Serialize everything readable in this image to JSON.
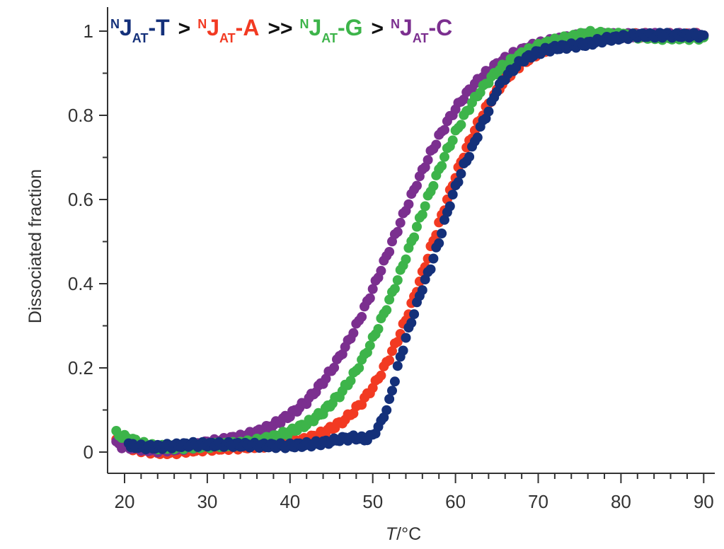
{
  "chart_data": {
    "type": "scatter",
    "title": "",
    "xlabel": {
      "italic": "T",
      "rest": "/°C"
    },
    "ylabel": "Dissociated fraction",
    "xlim": [
      18,
      91.5
    ],
    "ylim": [
      -0.05,
      1.057
    ],
    "xticks": [
      20,
      30,
      40,
      50,
      60,
      70,
      80,
      90
    ],
    "yticks": [
      0,
      0.2,
      0.4,
      0.6,
      0.8,
      1
    ],
    "ytick_labels": [
      "0",
      "0.2",
      "0.4",
      "0.6",
      "0.8",
      "1"
    ],
    "grid": false,
    "legend_placement": "top-left",
    "legend": {
      "items": [
        {
          "sup": "N",
          "main": "J",
          "sub": "AT",
          "suffix": "-T",
          "color": "#14307a"
        },
        {
          "sup": "N",
          "main": "J",
          "sub": "AT",
          "suffix": "-A",
          "color": "#f23a22"
        },
        {
          "sup": "N",
          "main": "J",
          "sub": "AT",
          "suffix": "-G",
          "color": "#3db44a"
        },
        {
          "sup": "N",
          "main": "J",
          "sub": "AT",
          "suffix": "-C",
          "color": "#7b2f8f"
        }
      ],
      "separators": [
        ">",
        ">>",
        ">"
      ]
    },
    "series": [
      {
        "name": "NJAT-A",
        "color": "#f23a22",
        "x": [
          19,
          20,
          21,
          22,
          24,
          26,
          28,
          30,
          32,
          34,
          36,
          38,
          40,
          42,
          44,
          46,
          47,
          48,
          49,
          50,
          51,
          52,
          53,
          54,
          55,
          56,
          57,
          58,
          59,
          60,
          61,
          62,
          63,
          64,
          65,
          66,
          67,
          68,
          70,
          72,
          74,
          76,
          80,
          85,
          90
        ],
        "y": [
          0.03,
          0.02,
          0.01,
          0.005,
          0.0,
          0.0,
          0.005,
          0.008,
          0.01,
          0.012,
          0.015,
          0.018,
          0.021,
          0.03,
          0.045,
          0.068,
          0.084,
          0.103,
          0.126,
          0.153,
          0.186,
          0.224,
          0.267,
          0.315,
          0.368,
          0.424,
          0.483,
          0.541,
          0.599,
          0.654,
          0.705,
          0.751,
          0.792,
          0.828,
          0.858,
          0.884,
          0.906,
          0.923,
          0.949,
          0.966,
          0.977,
          0.984,
          0.99,
          0.99,
          0.99
        ]
      },
      {
        "name": "NJAT-C",
        "color": "#7b2f8f",
        "x": [
          19,
          20,
          21,
          22,
          24,
          26,
          28,
          30,
          32,
          34,
          36,
          38,
          40,
          42,
          44,
          45,
          46,
          47,
          48,
          49,
          50,
          51,
          52,
          53,
          54,
          55,
          56,
          57,
          58,
          59,
          60,
          61,
          62,
          63,
          64,
          65,
          66,
          67,
          68,
          69,
          70,
          72,
          74,
          76,
          80,
          85,
          90
        ],
        "y": [
          0.02,
          0.012,
          0.01,
          0.008,
          0.005,
          0.008,
          0.012,
          0.022,
          0.028,
          0.036,
          0.047,
          0.064,
          0.088,
          0.12,
          0.167,
          0.195,
          0.227,
          0.261,
          0.299,
          0.341,
          0.386,
          0.433,
          0.481,
          0.529,
          0.577,
          0.624,
          0.668,
          0.71,
          0.748,
          0.783,
          0.815,
          0.842,
          0.867,
          0.888,
          0.906,
          0.922,
          0.934,
          0.945,
          0.954,
          0.962,
          0.969,
          0.978,
          0.985,
          0.99,
          0.99,
          0.99,
          0.99
        ]
      },
      {
        "name": "NJAT-G",
        "color": "#3db44a",
        "x": [
          19,
          20,
          21,
          22,
          23,
          24,
          26,
          28,
          30,
          34,
          36,
          38,
          40,
          42,
          44,
          46,
          47,
          48,
          49,
          50,
          51,
          52,
          53,
          54,
          55,
          56,
          57,
          58,
          59,
          60,
          61,
          62,
          63,
          64,
          65,
          66,
          67,
          68,
          70,
          72,
          74,
          76,
          80,
          85,
          90
        ],
        "y": [
          0.045,
          0.035,
          0.028,
          0.02,
          0.015,
          0.012,
          0.012,
          0.013,
          0.015,
          0.02,
          0.026,
          0.035,
          0.048,
          0.067,
          0.095,
          0.136,
          0.163,
          0.194,
          0.229,
          0.268,
          0.312,
          0.359,
          0.409,
          0.462,
          0.516,
          0.569,
          0.621,
          0.67,
          0.717,
          0.758,
          0.796,
          0.829,
          0.857,
          0.882,
          0.903,
          0.92,
          0.934,
          0.946,
          0.964,
          0.977,
          0.985,
          0.995,
          0.99,
          0.985,
          0.985
        ]
      },
      {
        "name": "NJAT-T",
        "color": "#14307a",
        "x": [
          20.5,
          21,
          22,
          24,
          26,
          28,
          30,
          32,
          34,
          36,
          38,
          40,
          42,
          44,
          45,
          46,
          47,
          48,
          49,
          50,
          51,
          52,
          53,
          54,
          55,
          56,
          57,
          58,
          59,
          60,
          61,
          62,
          63,
          64,
          65,
          66,
          67,
          68,
          70,
          72,
          74,
          76,
          78,
          80,
          82,
          85,
          90
        ],
        "y": [
          0.02,
          0.015,
          0.012,
          0.012,
          0.015,
          0.018,
          0.018,
          0.018,
          0.017,
          0.016,
          0.015,
          0.015,
          0.018,
          0.022,
          0.025,
          0.03,
          0.033,
          0.035,
          0.03,
          0.04,
          0.07,
          0.12,
          0.2,
          0.27,
          0.33,
          0.39,
          0.44,
          0.5,
          0.57,
          0.63,
          0.68,
          0.72,
          0.77,
          0.81,
          0.86,
          0.89,
          0.91,
          0.93,
          0.95,
          0.96,
          0.965,
          0.97,
          0.98,
          0.985,
          0.99,
          0.99,
          0.99
        ]
      }
    ]
  }
}
